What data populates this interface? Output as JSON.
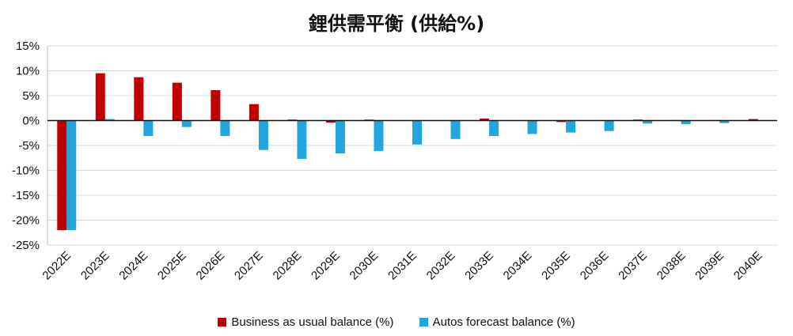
{
  "chart_data": {
    "type": "bar",
    "title": "鋰供需平衡 (供給%)",
    "categories": [
      "2022E",
      "2023E",
      "2024E",
      "2025E",
      "2026E",
      "2027E",
      "2028E",
      "2029E",
      "2030E",
      "2031E",
      "2032E",
      "2033E",
      "2034E",
      "2035E",
      "2036E",
      "2037E",
      "2038E",
      "2039E",
      "2040E"
    ],
    "series": [
      {
        "name": "Business as usual balance (%)",
        "color": "#c00000",
        "values": [
          -22.0,
          9.5,
          8.7,
          7.6,
          6.1,
          3.3,
          0.2,
          -0.4,
          0.2,
          0.0,
          0.0,
          0.4,
          0.0,
          -0.3,
          0.0,
          0.2,
          0.1,
          0.1,
          0.3
        ]
      },
      {
        "name": "Autos forecast balance (%)",
        "color": "#23a6dd",
        "values": [
          -22.0,
          0.3,
          -3.1,
          -1.3,
          -3.1,
          -5.9,
          -7.7,
          -6.6,
          -6.1,
          -4.8,
          -3.7,
          -3.1,
          -2.7,
          -2.4,
          -2.1,
          -0.6,
          -0.7,
          -0.5,
          0.0
        ]
      }
    ],
    "ylim": [
      -25,
      15
    ],
    "yticks": [
      -25,
      -20,
      -15,
      -10,
      -5,
      0,
      5,
      10,
      15
    ],
    "ytick_labels": [
      "-25%",
      "-20%",
      "-15%",
      "-10%",
      "-5%",
      "0%",
      "5%",
      "10%",
      "15%"
    ],
    "xlabel": "",
    "ylabel": "",
    "grid": true,
    "legend_position": "bottom"
  }
}
